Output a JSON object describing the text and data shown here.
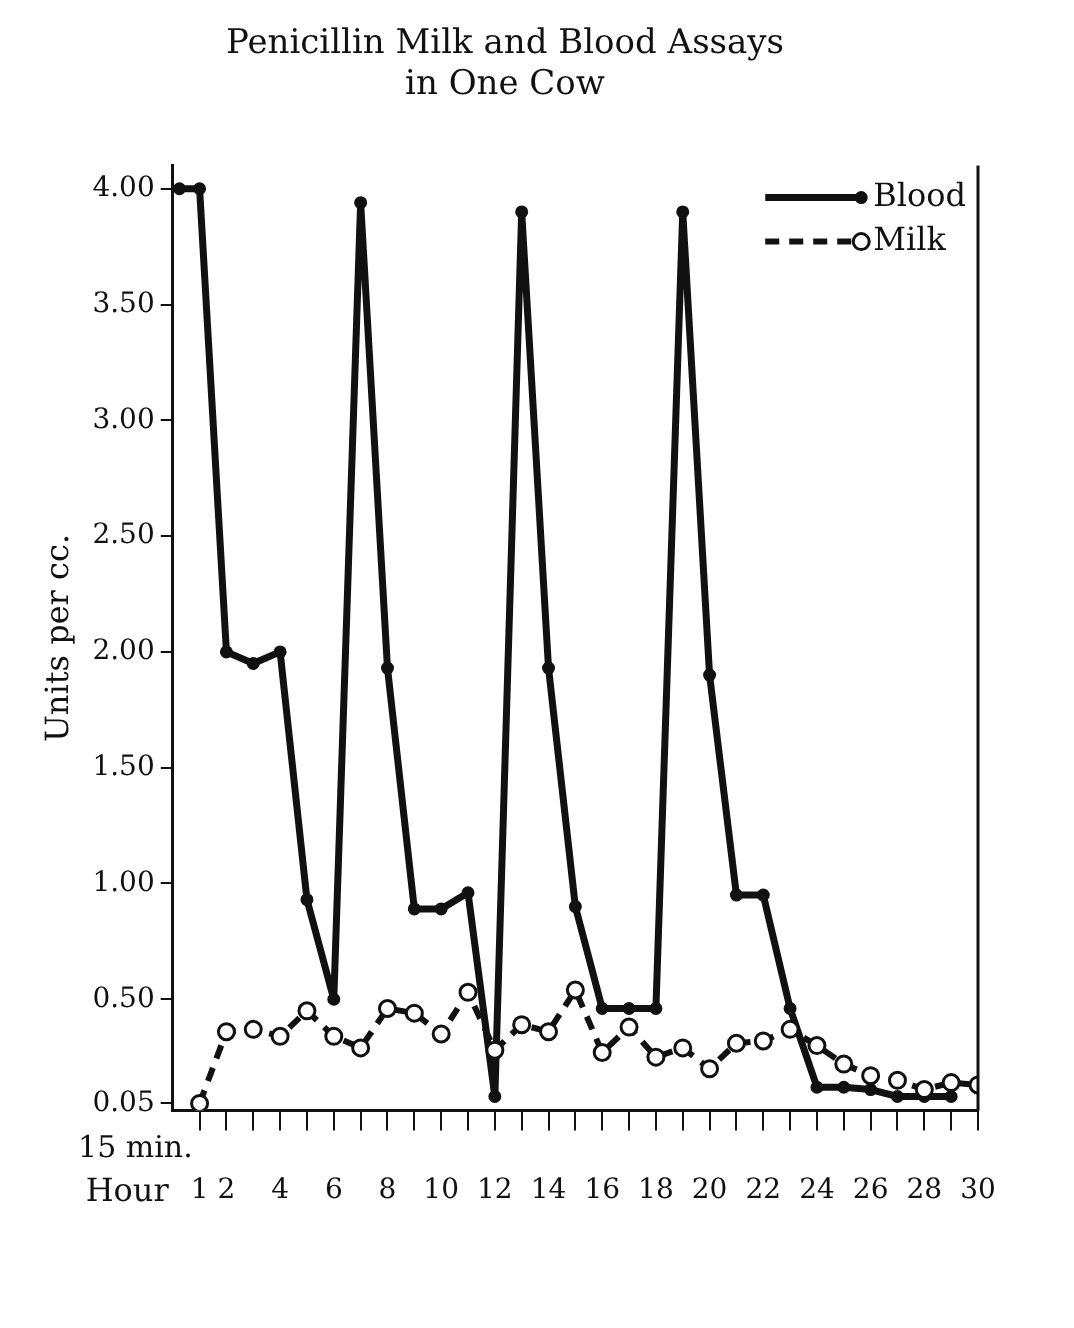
{
  "chart_data": {
    "type": "line",
    "title": "Penicillin Milk and Blood Assays\nin One Cow",
    "xlabel": "Hour",
    "ylabel": "Units per cc.",
    "xlim": [
      0,
      30
    ],
    "ylim": [
      0.02,
      4.1
    ],
    "annotations": [
      "15 min."
    ],
    "xticks": [
      1,
      2,
      {
        "value": 3,
        "label": null
      },
      4,
      {
        "value": 5,
        "label": null
      },
      6,
      {
        "value": 7,
        "label": null
      },
      8,
      {
        "value": 9,
        "label": null
      },
      10,
      {
        "value": 11,
        "label": null
      },
      12,
      {
        "value": 13,
        "label": null
      },
      14,
      {
        "value": 15,
        "label": null
      },
      16,
      {
        "value": 17,
        "label": null
      },
      18,
      {
        "value": 19,
        "label": null
      },
      20,
      {
        "value": 21,
        "label": null
      },
      22,
      {
        "value": 23,
        "label": null
      },
      24,
      {
        "value": 25,
        "label": null
      },
      26,
      {
        "value": 27,
        "label": null
      },
      28,
      {
        "value": 29,
        "label": null
      },
      30
    ],
    "yticks": [
      {
        "value": 0.05,
        "label": "0.05"
      },
      {
        "value": 0.5,
        "label": "0.50"
      },
      {
        "value": 1,
        "label": "1.00"
      },
      {
        "value": 1.5,
        "label": "1.50"
      },
      {
        "value": 2,
        "label": "2.00"
      },
      {
        "value": 2.5,
        "label": "2.50"
      },
      {
        "value": 3,
        "label": "3.00"
      },
      {
        "value": 3.5,
        "label": "3.50"
      },
      {
        "value": 4,
        "label": "4.00"
      }
    ],
    "grid": false,
    "legend": "top right",
    "series": [
      {
        "name": "Blood",
        "color": "#111111",
        "marker": "circle",
        "line_style": "solid",
        "x": [
          0.25,
          1,
          2,
          3,
          4,
          5,
          6,
          7,
          8,
          9,
          10,
          11,
          12,
          13,
          14,
          15,
          16,
          17,
          18,
          19,
          20,
          21,
          22,
          23,
          24,
          25,
          26,
          27,
          28,
          29
        ],
        "values": [
          4.0,
          4.0,
          2.0,
          1.95,
          2.0,
          0.93,
          0.5,
          3.94,
          1.93,
          0.89,
          0.89,
          0.96,
          0.08,
          3.9,
          1.93,
          0.9,
          0.46,
          0.46,
          0.46,
          3.9,
          1.9,
          0.95,
          0.95,
          0.46,
          0.12,
          0.12,
          0.11,
          0.08,
          0.08,
          0.08
        ]
      },
      {
        "name": "Milk",
        "color": "#111111",
        "marker": "circle",
        "line_style": "dashed",
        "x": [
          1,
          2,
          3,
          4,
          5,
          6,
          7,
          8,
          9,
          10,
          11,
          12,
          13,
          14,
          15,
          16,
          17,
          18,
          19,
          20,
          21,
          22,
          23,
          24,
          25,
          26,
          27,
          28,
          29,
          30
        ],
        "values": [
          0.05,
          0.36,
          0.37,
          0.34,
          0.45,
          0.34,
          0.29,
          0.46,
          0.44,
          0.35,
          0.53,
          0.28,
          0.39,
          0.36,
          0.54,
          0.27,
          0.38,
          0.25,
          0.29,
          0.2,
          0.31,
          0.32,
          0.37,
          0.3,
          0.22,
          0.17,
          0.15,
          0.11,
          0.14,
          0.13
        ]
      }
    ]
  }
}
